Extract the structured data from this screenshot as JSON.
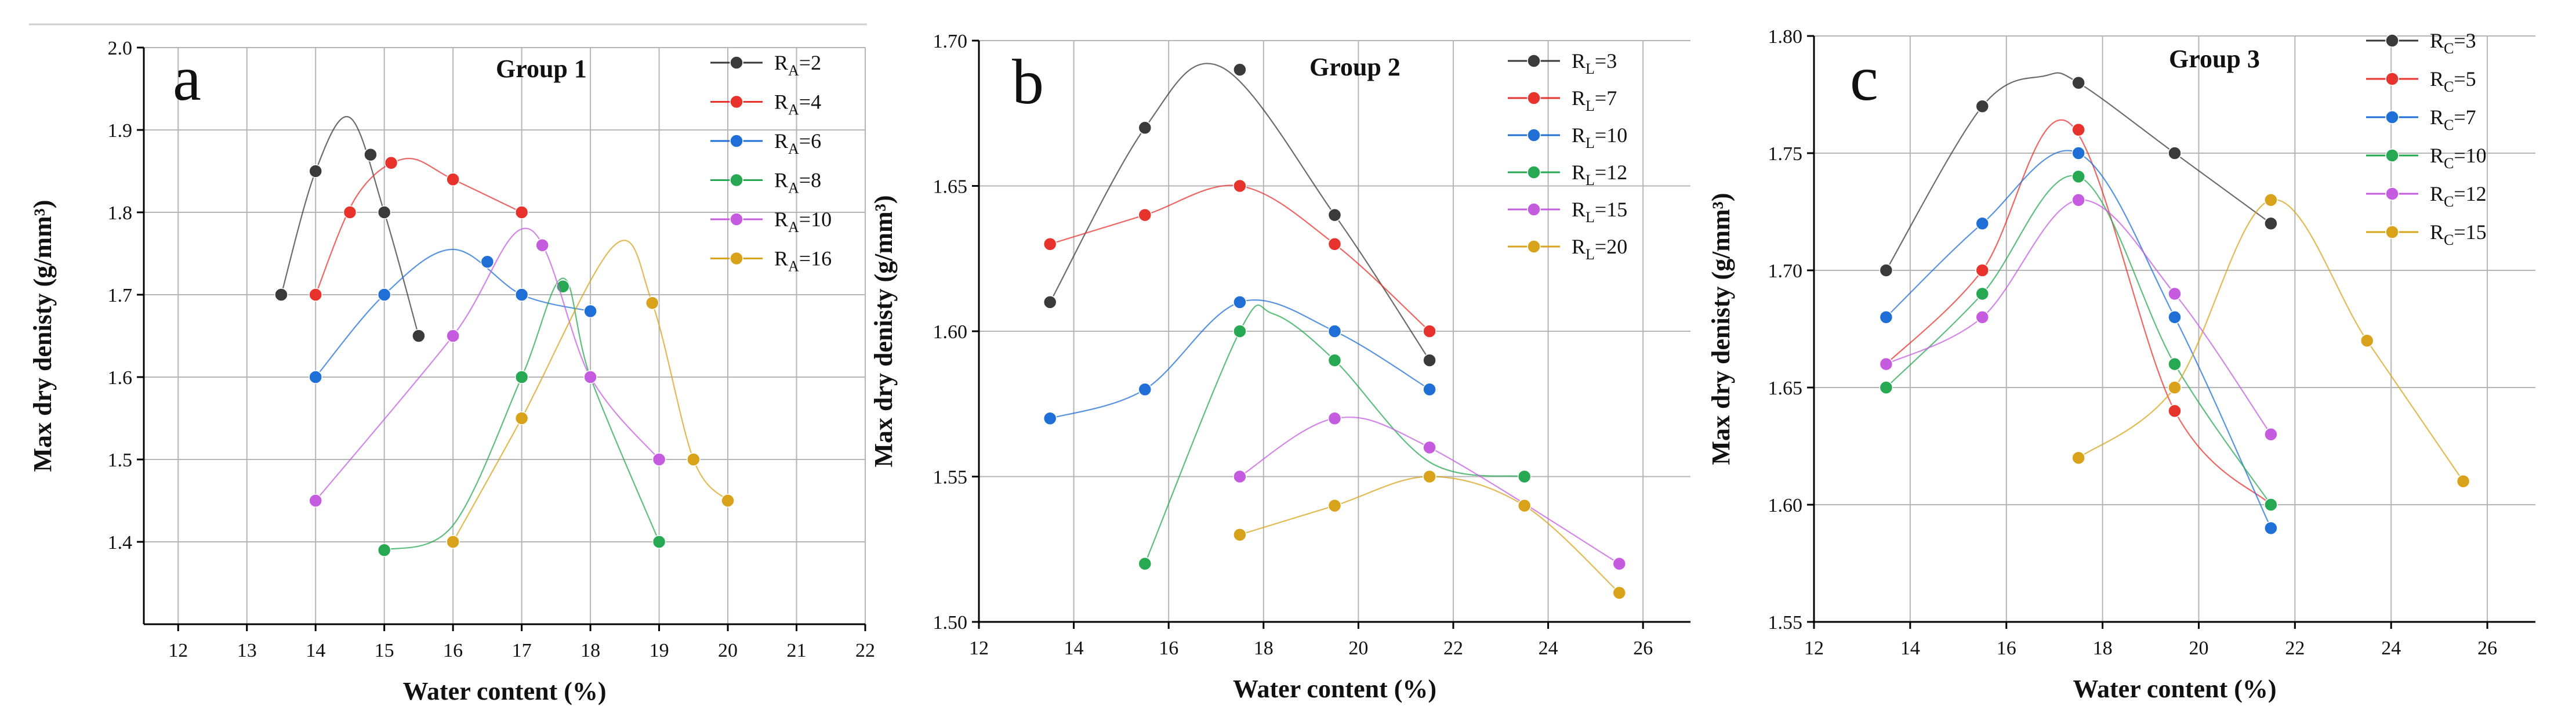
{
  "colors": {
    "black": "#3a3a3a",
    "red": "#e8322c",
    "blue": "#1f6fd6",
    "green": "#27a852",
    "purple": "#c55ce0",
    "gold": "#d8a31a",
    "grid": "#b5b5b5",
    "top_line": "#cfcfcf"
  },
  "chart_data": [
    {
      "type": "line",
      "letter": "a",
      "title": "Group 1",
      "xlabel": "Water content (%)",
      "ylabel": "Max dry denisty (g/mm³)",
      "xlim": [
        11.5,
        22
      ],
      "ylim": [
        1.3,
        2.0
      ],
      "xticks": [
        "12",
        "13",
        "14",
        "15",
        "16",
        "17",
        "18",
        "19",
        "20",
        "21",
        "22"
      ],
      "yticks": [
        "1.4",
        "1.5",
        "1.6",
        "1.7",
        "1.8",
        "1.9",
        "2.0"
      ],
      "grid": true,
      "legend_position": "top-right",
      "series": [
        {
          "name": "R_A=2",
          "label_main": "R",
          "label_sub": "A",
          "label_rest": "=2",
          "color_key": "black",
          "points": [
            [
              13.5,
              1.7
            ],
            [
              14,
              1.85
            ],
            [
              14.8,
              1.87
            ],
            [
              15,
              1.8
            ],
            [
              15.5,
              1.65
            ]
          ],
          "curve": [
            [
              13.5,
              1.7
            ],
            [
              14,
              1.85
            ],
            [
              14.5,
              1.915
            ],
            [
              15,
              1.8
            ],
            [
              15.5,
              1.65
            ]
          ]
        },
        {
          "name": "R_A=4",
          "label_main": "R",
          "label_sub": "A",
          "label_rest": "=4",
          "color_key": "red",
          "points": [
            [
              14,
              1.7
            ],
            [
              14.5,
              1.8
            ],
            [
              15.1,
              1.86
            ],
            [
              16,
              1.84
            ],
            [
              17,
              1.8
            ]
          ],
          "curve": [
            [
              14,
              1.7
            ],
            [
              14.6,
              1.82
            ],
            [
              15.3,
              1.865
            ],
            [
              16,
              1.84
            ],
            [
              17,
              1.8
            ]
          ]
        },
        {
          "name": "R_A=6",
          "label_main": "R",
          "label_sub": "A",
          "label_rest": "=6",
          "color_key": "blue",
          "points": [
            [
              14,
              1.6
            ],
            [
              15,
              1.7
            ],
            [
              16.5,
              1.74
            ],
            [
              17,
              1.7
            ],
            [
              18,
              1.68
            ]
          ],
          "curve": [
            [
              14,
              1.6
            ],
            [
              15,
              1.7
            ],
            [
              16,
              1.755
            ],
            [
              17,
              1.7
            ],
            [
              18,
              1.68
            ]
          ]
        },
        {
          "name": "R_A=8",
          "label_main": "R",
          "label_sub": "A",
          "label_rest": "=8",
          "color_key": "green",
          "points": [
            [
              15,
              1.39
            ],
            [
              17,
              1.6
            ],
            [
              17.6,
              1.71
            ],
            [
              18,
              1.6
            ],
            [
              19,
              1.4
            ]
          ],
          "curve": [
            [
              15,
              1.39
            ],
            [
              16,
              1.42
            ],
            [
              17,
              1.6
            ],
            [
              17.6,
              1.72
            ],
            [
              18,
              1.6
            ],
            [
              19,
              1.4
            ]
          ]
        },
        {
          "name": "R_A=10",
          "label_main": "R",
          "label_sub": "A",
          "label_rest": "=10",
          "color_key": "purple",
          "points": [
            [
              14,
              1.45
            ],
            [
              16,
              1.65
            ],
            [
              17.3,
              1.76
            ],
            [
              18,
              1.6
            ],
            [
              19,
              1.5
            ]
          ],
          "curve": [
            [
              14,
              1.45
            ],
            [
              16,
              1.65
            ],
            [
              17.1,
              1.78
            ],
            [
              18,
              1.6
            ],
            [
              19,
              1.5
            ]
          ]
        },
        {
          "name": "R_A=16",
          "label_main": "R",
          "label_sub": "A",
          "label_rest": "=16",
          "color_key": "gold",
          "points": [
            [
              16,
              1.4
            ],
            [
              17,
              1.55
            ],
            [
              18.9,
              1.69
            ],
            [
              19.5,
              1.5
            ],
            [
              20,
              1.45
            ]
          ],
          "curve": [
            [
              16,
              1.4
            ],
            [
              17,
              1.55
            ],
            [
              18.35,
              1.76
            ],
            [
              18.9,
              1.69
            ],
            [
              19.5,
              1.5
            ],
            [
              20,
              1.45
            ]
          ]
        }
      ]
    },
    {
      "type": "line",
      "letter": "b",
      "title": "Group 2",
      "xlabel": "Water content (%)",
      "ylabel": "Max dry denisty (g/mm³)",
      "xlim": [
        12,
        27
      ],
      "ylim": [
        1.5,
        1.7
      ],
      "xticks": [
        "12",
        "14",
        "16",
        "18",
        "20",
        "22",
        "24",
        "26"
      ],
      "yticks": [
        "1.50",
        "1.55",
        "1.60",
        "1.65",
        "1.70"
      ],
      "grid": true,
      "legend_position": "top-right",
      "series": [
        {
          "name": "R_L=3",
          "label_main": "R",
          "label_sub": "L",
          "label_rest": "=3",
          "color_key": "black",
          "points": [
            [
              13.5,
              1.61
            ],
            [
              15.5,
              1.67
            ],
            [
              17.5,
              1.69
            ],
            [
              19.5,
              1.64
            ],
            [
              21.5,
              1.59
            ]
          ],
          "curve": [
            [
              13.5,
              1.61
            ],
            [
              15.5,
              1.67
            ],
            [
              17.1,
              1.691
            ],
            [
              19.5,
              1.64
            ],
            [
              21.5,
              1.59
            ]
          ]
        },
        {
          "name": "R_L=7",
          "label_main": "R",
          "label_sub": "L",
          "label_rest": "=7",
          "color_key": "red",
          "points": [
            [
              13.5,
              1.63
            ],
            [
              15.5,
              1.64
            ],
            [
              17.5,
              1.65
            ],
            [
              19.5,
              1.63
            ],
            [
              21.5,
              1.6
            ]
          ],
          "curve": [
            [
              13.5,
              1.63
            ],
            [
              15.5,
              1.64
            ],
            [
              17.5,
              1.65
            ],
            [
              19.5,
              1.63
            ],
            [
              21.5,
              1.6
            ]
          ]
        },
        {
          "name": "R_L=10",
          "label_main": "R",
          "label_sub": "L",
          "label_rest": "=10",
          "color_key": "blue",
          "points": [
            [
              13.5,
              1.57
            ],
            [
              15.5,
              1.58
            ],
            [
              17.5,
              1.61
            ],
            [
              19.5,
              1.6
            ],
            [
              21.5,
              1.58
            ]
          ],
          "curve": [
            [
              13.5,
              1.57
            ],
            [
              15.5,
              1.58
            ],
            [
              17.5,
              1.61
            ],
            [
              19.5,
              1.6
            ],
            [
              21.5,
              1.58
            ]
          ]
        },
        {
          "name": "R_L=12",
          "label_main": "R",
          "label_sub": "L",
          "label_rest": "=12",
          "color_key": "green",
          "points": [
            [
              15.5,
              1.52
            ],
            [
              17.5,
              1.6
            ],
            [
              19.5,
              1.59
            ],
            [
              23.5,
              1.55
            ]
          ],
          "curve": [
            [
              15.5,
              1.52
            ],
            [
              17.5,
              1.6
            ],
            [
              18.2,
              1.606
            ],
            [
              19.5,
              1.59
            ],
            [
              21.5,
              1.555
            ],
            [
              23.5,
              1.55
            ]
          ]
        },
        {
          "name": "R_L=15",
          "label_main": "R",
          "label_sub": "L",
          "label_rest": "=15",
          "color_key": "purple",
          "points": [
            [
              17.5,
              1.55
            ],
            [
              19.5,
              1.57
            ],
            [
              21.5,
              1.56
            ],
            [
              25.5,
              1.52
            ]
          ],
          "curve": [
            [
              17.5,
              1.55
            ],
            [
              19.5,
              1.57
            ],
            [
              21.5,
              1.56
            ],
            [
              25.5,
              1.52
            ]
          ]
        },
        {
          "name": "R_L=20",
          "label_main": "R",
          "label_sub": "L",
          "label_rest": "=20",
          "color_key": "gold",
          "points": [
            [
              17.5,
              1.53
            ],
            [
              19.5,
              1.54
            ],
            [
              21.5,
              1.55
            ],
            [
              23.5,
              1.54
            ],
            [
              25.5,
              1.51
            ]
          ],
          "curve": [
            [
              17.5,
              1.53
            ],
            [
              19.5,
              1.54
            ],
            [
              21.5,
              1.55
            ],
            [
              23.5,
              1.54
            ],
            [
              25.5,
              1.51
            ]
          ]
        }
      ]
    },
    {
      "type": "line",
      "letter": "c",
      "title": "Group 3",
      "xlabel": "Water content (%)",
      "ylabel": "Max dry denisty (g/mm³)",
      "xlim": [
        12,
        27
      ],
      "ylim": [
        1.55,
        1.8
      ],
      "xticks": [
        "12",
        "14",
        "16",
        "18",
        "20",
        "22",
        "24",
        "26"
      ],
      "yticks": [
        "1.55",
        "1.60",
        "1.65",
        "1.70",
        "1.75",
        "1.80"
      ],
      "grid": true,
      "legend_position": "top-right",
      "series": [
        {
          "name": "R_C=3",
          "label_main": "R",
          "label_sub": "C",
          "label_rest": "=3",
          "color_key": "black",
          "points": [
            [
              13.5,
              1.7
            ],
            [
              15.5,
              1.77
            ],
            [
              17.5,
              1.78
            ],
            [
              19.5,
              1.75
            ],
            [
              21.5,
              1.72
            ]
          ],
          "curve": [
            [
              13.5,
              1.7
            ],
            [
              15.5,
              1.77
            ],
            [
              16.8,
              1.783
            ],
            [
              17.5,
              1.78
            ],
            [
              19.5,
              1.75
            ],
            [
              21.5,
              1.72
            ]
          ]
        },
        {
          "name": "R_C=5",
          "label_main": "R",
          "label_sub": "C",
          "label_rest": "=5",
          "color_key": "red",
          "points": [
            [
              13.5,
              1.66
            ],
            [
              15.5,
              1.7
            ],
            [
              17.5,
              1.76
            ],
            [
              19.5,
              1.64
            ],
            [
              21.5,
              1.6
            ]
          ],
          "curve": [
            [
              13.5,
              1.66
            ],
            [
              15.5,
              1.7
            ],
            [
              17.3,
              1.763
            ],
            [
              19.5,
              1.64
            ],
            [
              21.5,
              1.6
            ]
          ]
        },
        {
          "name": "R_C=7",
          "label_main": "R",
          "label_sub": "C",
          "label_rest": "=7",
          "color_key": "blue",
          "points": [
            [
              13.5,
              1.68
            ],
            [
              15.5,
              1.72
            ],
            [
              17.5,
              1.75
            ],
            [
              19.5,
              1.68
            ],
            [
              21.5,
              1.59
            ]
          ],
          "curve": [
            [
              13.5,
              1.68
            ],
            [
              15.5,
              1.72
            ],
            [
              17.5,
              1.75
            ],
            [
              19.5,
              1.68
            ],
            [
              21.5,
              1.59
            ]
          ]
        },
        {
          "name": "R_C=10",
          "label_main": "R",
          "label_sub": "C",
          "label_rest": "=10",
          "color_key": "green",
          "points": [
            [
              13.5,
              1.65
            ],
            [
              15.5,
              1.69
            ],
            [
              17.5,
              1.74
            ],
            [
              19.5,
              1.66
            ],
            [
              21.5,
              1.6
            ]
          ],
          "curve": [
            [
              13.5,
              1.65
            ],
            [
              15.5,
              1.69
            ],
            [
              17.5,
              1.74
            ],
            [
              19.5,
              1.66
            ],
            [
              21.5,
              1.6
            ]
          ]
        },
        {
          "name": "R_C=12",
          "label_main": "R",
          "label_sub": "C",
          "label_rest": "=12",
          "color_key": "purple",
          "points": [
            [
              13.5,
              1.66
            ],
            [
              15.5,
              1.68
            ],
            [
              17.5,
              1.73
            ],
            [
              19.5,
              1.69
            ],
            [
              21.5,
              1.63
            ]
          ],
          "curve": [
            [
              13.5,
              1.66
            ],
            [
              15.5,
              1.68
            ],
            [
              17.5,
              1.73
            ],
            [
              19.5,
              1.69
            ],
            [
              21.5,
              1.63
            ]
          ]
        },
        {
          "name": "R_C=15",
          "label_main": "R",
          "label_sub": "C",
          "label_rest": "=15",
          "color_key": "gold",
          "points": [
            [
              17.5,
              1.62
            ],
            [
              19.5,
              1.65
            ],
            [
              21.5,
              1.73
            ],
            [
              23.5,
              1.67
            ],
            [
              25.5,
              1.61
            ]
          ],
          "curve": [
            [
              17.5,
              1.62
            ],
            [
              19.5,
              1.65
            ],
            [
              21.5,
              1.73
            ],
            [
              23.5,
              1.67
            ],
            [
              25.5,
              1.61
            ]
          ]
        }
      ]
    }
  ]
}
